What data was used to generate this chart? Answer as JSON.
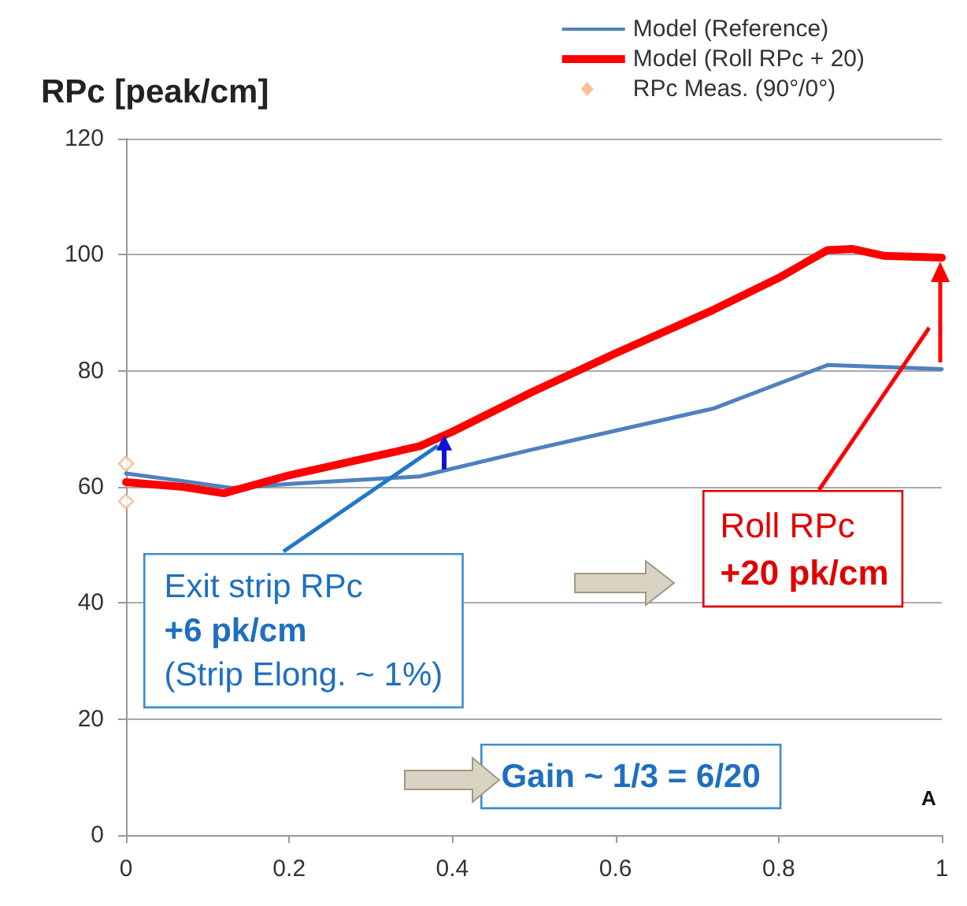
{
  "chart_data": {
    "type": "line",
    "title": "RPc [peak/cm]",
    "xlim": [
      0,
      1
    ],
    "xticks": [
      0,
      0.2,
      0.4,
      0.6,
      0.8,
      1
    ],
    "ylim": [
      0,
      120
    ],
    "yticks": [
      0,
      20,
      40,
      60,
      80,
      100,
      120
    ],
    "grid": "y",
    "legend": "top right",
    "series": [
      {
        "name": "Model (Reference)",
        "color": "#4f81bd",
        "x": [
          0,
          0.07,
          0.13,
          0.2,
          0.36,
          0.5,
          0.72,
          0.86,
          1
        ],
        "values": [
          62.3,
          61,
          59.8,
          60.5,
          61.8,
          66.5,
          73.5,
          81,
          80.3
        ]
      },
      {
        "name": "Model (Roll RPc + 20)",
        "color": "#ff0000",
        "x": [
          0,
          0.07,
          0.12,
          0.2,
          0.28,
          0.36,
          0.4,
          0.5,
          0.6,
          0.72,
          0.8,
          0.86,
          0.89,
          0.93,
          1
        ],
        "values": [
          60.8,
          60,
          58.9,
          62,
          64.5,
          67,
          69.5,
          76.5,
          83,
          90.5,
          96,
          100.8,
          101,
          99.8,
          99.5
        ]
      },
      {
        "name": "RPc Meas. (90°/0°)",
        "type": "scatter",
        "marker": "diamond",
        "color": "#f4b183",
        "x": [
          0,
          0
        ],
        "values": [
          64,
          57.5
        ]
      }
    ],
    "annotations": [
      {
        "text": "Exit strip RPc",
        "x": 0.39,
        "y": 69
      },
      "+6 pk/cm",
      "(Strip Elong. ~ 1%)",
      "Roll RPc",
      "+20 pk/cm",
      "Gain ~ 1/3 = 6/20",
      "A"
    ]
  }
}
